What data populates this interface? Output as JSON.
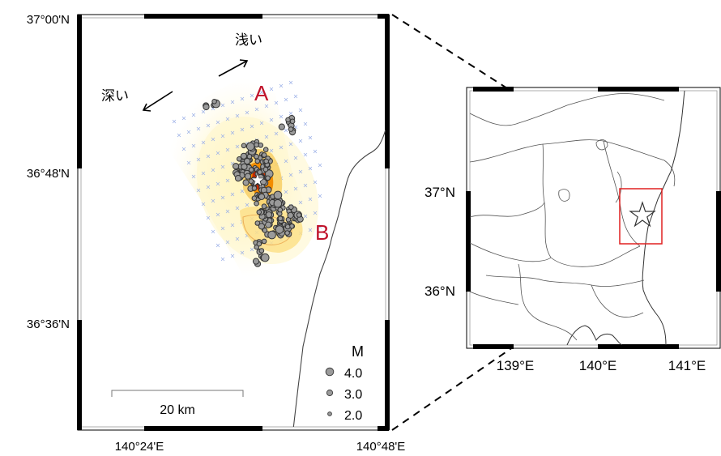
{
  "main_map": {
    "lat_labels": [
      "37°00'N",
      "36°48'N",
      "36°36'N"
    ],
    "lon_labels": [
      "140°24'E",
      "140°48'E"
    ],
    "arrow_shallow": "浅い",
    "arrow_deep": "深い",
    "segment_a": "A",
    "segment_b": "B",
    "scale_bar": "20 km",
    "legend": {
      "title": "M",
      "entries": [
        "4.0",
        "3.0",
        "2.0"
      ]
    }
  },
  "inset_map": {
    "lat_labels": [
      "37°N",
      "36°N"
    ],
    "lon_labels": [
      "139°E",
      "140°E",
      "141°E"
    ],
    "epicenter_icon": "star-icon"
  },
  "colors": {
    "label_red": "#c0122a",
    "frame": "#000000",
    "event_fill": "#9a9a9a",
    "slip_high": "#cc2a00",
    "slip_mid": "#f28c00",
    "slip_low": "#fff6c8",
    "inset_box": "#e02020"
  }
}
